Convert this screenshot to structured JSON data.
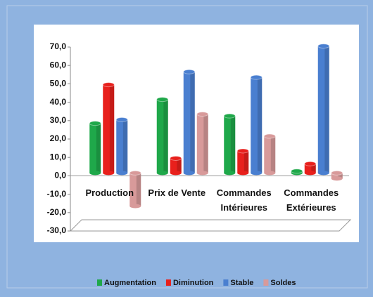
{
  "chart_data": {
    "type": "bar",
    "categories": [
      "Production",
      "Prix de Vente",
      "Commandes Intérieures",
      "Commandes Extérieures"
    ],
    "series": [
      {
        "name": "Augmentation",
        "color": "#1fa84a",
        "values": [
          27,
          40,
          31,
          1
        ]
      },
      {
        "name": "Diminution",
        "color": "#e8201c",
        "values": [
          48,
          8,
          12,
          5
        ]
      },
      {
        "name": "Stable",
        "color": "#4a7fd0",
        "values": [
          29,
          55,
          52,
          69
        ]
      },
      {
        "name": "Soldes",
        "color": "#d89a9a",
        "values": [
          -18,
          32,
          20,
          -3
        ]
      }
    ],
    "ylim": [
      -30,
      70
    ],
    "yticks": [
      {
        "value": -30,
        "label": "-30,0"
      },
      {
        "value": -20,
        "label": "-20,0"
      },
      {
        "value": -10,
        "label": "-10,0"
      },
      {
        "value": 0,
        "label": "0,0"
      },
      {
        "value": 10,
        "label": "10,0"
      },
      {
        "value": 20,
        "label": "20,0"
      },
      {
        "value": 30,
        "label": "30,0"
      },
      {
        "value": 40,
        "label": "40,0"
      },
      {
        "value": 50,
        "label": "50,0"
      },
      {
        "value": 60,
        "label": "60,0"
      },
      {
        "value": 70,
        "label": "70,0"
      }
    ],
    "legend": "bottom"
  }
}
